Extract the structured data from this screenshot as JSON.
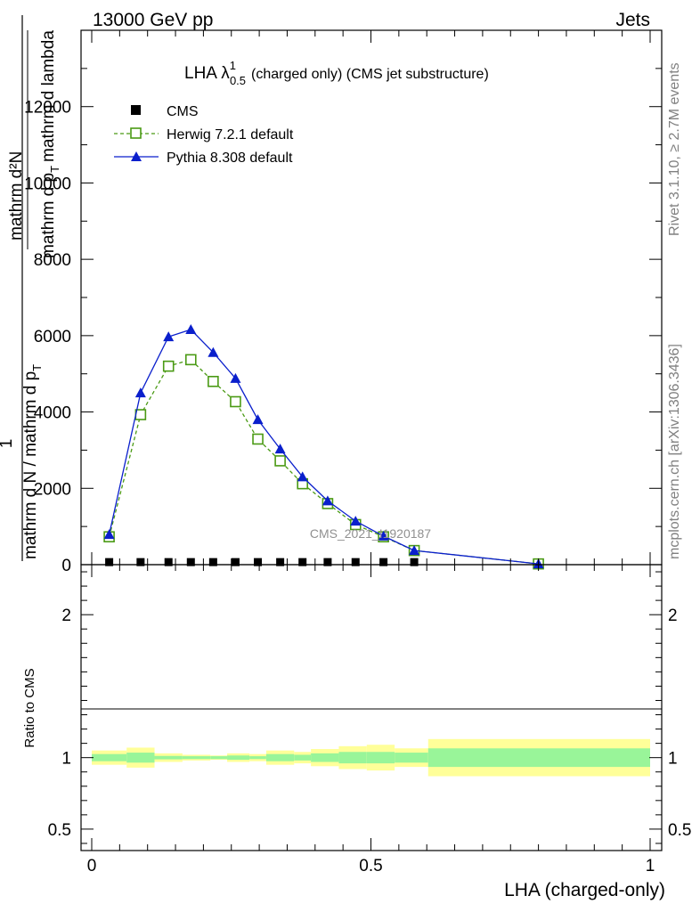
{
  "header": {
    "left": "13000 GeV pp",
    "right": "Jets"
  },
  "side_labels": {
    "rivet": "Rivet 3.1.10, ≥ 2.7M events",
    "mcplots": "mcplots.cern.ch [arXiv:1306.3436]"
  },
  "chart_data": [
    {
      "type": "line",
      "panel": "main",
      "title_main": "LHA λ",
      "title_sup": "1",
      "title_sub": "0.5",
      "title_rest": "(charged only) (CMS jet substructure)",
      "ylabel_numerator_1": "mathrm d²N",
      "ylabel_numerator_2": "mathrm d p",
      "ylabel_numerator_sub": "T",
      "ylabel_numerator_3": "mathrm d lambda",
      "ylabel_prefix": "1",
      "ylabel_denominator": "mathrm d N / mathrm d p",
      "ylabel_denominator_sub": "T",
      "ylim": [
        0,
        14000
      ],
      "yticks": [
        0,
        2000,
        4000,
        6000,
        8000,
        10000,
        12000
      ],
      "yticklabels": [
        "0",
        "2000",
        "4000",
        "6000",
        "8000",
        "10000",
        "12000"
      ],
      "watermark": "CMS_2021_I1920187",
      "legend_position": "top-left",
      "series": [
        {
          "name": "CMS",
          "color": "#000000",
          "marker": "square-filled",
          "x": [
            0.03125,
            0.0875,
            0.1375,
            0.1775,
            0.2175,
            0.2575,
            0.2975,
            0.3375,
            0.3775,
            0.4225,
            0.4725,
            0.5225,
            0.5775
          ],
          "y": [
            20,
            20,
            20,
            20,
            20,
            20,
            20,
            20,
            20,
            20,
            20,
            20,
            20
          ]
        },
        {
          "name": "Herwig 7.2.1 default",
          "color": "#4a9a14",
          "marker": "square-open",
          "line": "dashed",
          "x": [
            0.03125,
            0.0875,
            0.1375,
            0.1775,
            0.2175,
            0.2575,
            0.2975,
            0.3375,
            0.3775,
            0.4225,
            0.4725,
            0.5225,
            0.5775,
            0.8
          ],
          "y": [
            730,
            3930,
            5200,
            5370,
            4800,
            4270,
            3290,
            2720,
            2120,
            1600,
            1050,
            730,
            370,
            20
          ]
        },
        {
          "name": "Pythia 8.308 default",
          "color": "#0a1fcc",
          "marker": "triangle-filled",
          "line": "solid",
          "x": [
            0.03125,
            0.0875,
            0.1375,
            0.1775,
            0.2175,
            0.2575,
            0.2975,
            0.3375,
            0.3775,
            0.4225,
            0.4725,
            0.5225,
            0.5775,
            0.8
          ],
          "y": [
            790,
            4500,
            5970,
            6160,
            5560,
            4880,
            3800,
            3030,
            2300,
            1670,
            1140,
            750,
            370,
            20
          ]
        }
      ]
    },
    {
      "type": "area",
      "panel": "ratio",
      "ylabel": "Ratio to CMS",
      "xlabel": "LHA (charged-only)",
      "xlim": [
        -0.02,
        1.02
      ],
      "ylim": [
        0.35,
        2.35
      ],
      "yticks": [
        0.5,
        1,
        2
      ],
      "yticklabels": [
        "0.5",
        "1",
        "2"
      ],
      "xticks": [
        0,
        0.5,
        1
      ],
      "xticklabels": [
        "0",
        "0.5",
        "1"
      ],
      "bins": [
        {
          "lo": 0.0,
          "hi": 0.0625,
          "inner": 0.025,
          "outer": 0.05
        },
        {
          "lo": 0.0625,
          "hi": 0.1125,
          "inner": 0.035,
          "outer": 0.07
        },
        {
          "lo": 0.1125,
          "hi": 0.1625,
          "inner": 0.012,
          "outer": 0.03
        },
        {
          "lo": 0.1625,
          "hi": 0.2125,
          "inner": 0.01,
          "outer": 0.02
        },
        {
          "lo": 0.2125,
          "hi": 0.2425,
          "inner": 0.01,
          "outer": 0.015
        },
        {
          "lo": 0.2425,
          "hi": 0.2825,
          "inner": 0.015,
          "outer": 0.03
        },
        {
          "lo": 0.2825,
          "hi": 0.3125,
          "inner": 0.01,
          "outer": 0.025
        },
        {
          "lo": 0.3125,
          "hi": 0.3625,
          "inner": 0.025,
          "outer": 0.05
        },
        {
          "lo": 0.3625,
          "hi": 0.3925,
          "inner": 0.02,
          "outer": 0.04
        },
        {
          "lo": 0.3925,
          "hi": 0.4425,
          "inner": 0.03,
          "outer": 0.06
        },
        {
          "lo": 0.4425,
          "hi": 0.4925,
          "inner": 0.04,
          "outer": 0.08
        },
        {
          "lo": 0.4925,
          "hi": 0.5425,
          "inner": 0.04,
          "outer": 0.09
        },
        {
          "lo": 0.5425,
          "hi": 0.6025,
          "inner": 0.035,
          "outer": 0.065
        },
        {
          "lo": 0.6025,
          "hi": 1.0,
          "inner": 0.065,
          "outer": 0.13
        }
      ]
    }
  ]
}
